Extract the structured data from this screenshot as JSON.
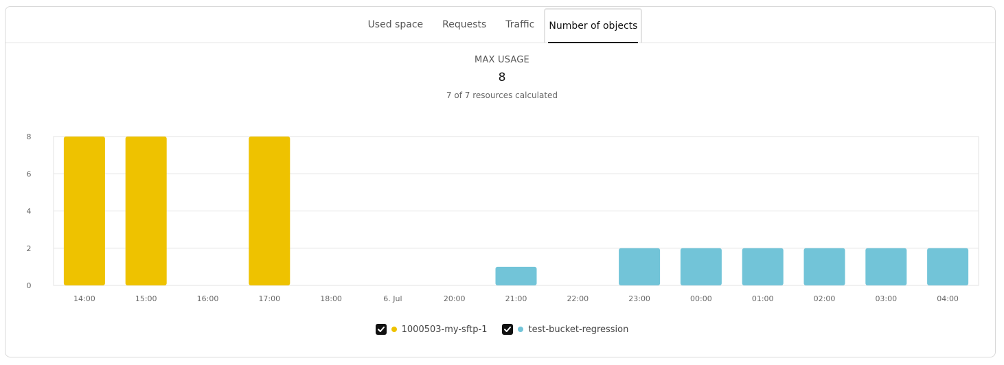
{
  "tabs": [
    {
      "label": "Used space",
      "active": false
    },
    {
      "label": "Requests",
      "active": false
    },
    {
      "label": "Traffic",
      "active": false
    },
    {
      "label": "Number of objects",
      "active": true
    }
  ],
  "summary": {
    "label": "MAX USAGE",
    "value": "8",
    "sub": "7 of 7 resources calculated"
  },
  "legend": [
    {
      "name": "1000503-my-sftp-1",
      "color": "#EEC200",
      "checked": true
    },
    {
      "name": "test-bucket-regression",
      "color": "#72C4D8",
      "checked": true
    }
  ],
  "chart_data": {
    "type": "bar",
    "stacked": true,
    "categories": [
      "14:00",
      "15:00",
      "16:00",
      "17:00",
      "18:00",
      "6. Jul",
      "20:00",
      "21:00",
      "22:00",
      "23:00",
      "00:00",
      "01:00",
      "02:00",
      "03:00",
      "04:00"
    ],
    "series": [
      {
        "name": "1000503-my-sftp-1",
        "color": "#EEC200",
        "values": [
          8,
          8,
          0,
          8,
          0,
          0,
          0,
          0,
          0,
          0,
          0,
          0,
          0,
          0,
          0
        ]
      },
      {
        "name": "test-bucket-regression",
        "color": "#72C4D8",
        "values": [
          0,
          0,
          0,
          0,
          0,
          0,
          0,
          1,
          0,
          2,
          2,
          2,
          2,
          2,
          2
        ]
      }
    ],
    "ylim": [
      0,
      8
    ],
    "yticks": [
      0,
      2,
      4,
      6,
      8
    ],
    "grid": true,
    "legend_position": "bottom"
  }
}
